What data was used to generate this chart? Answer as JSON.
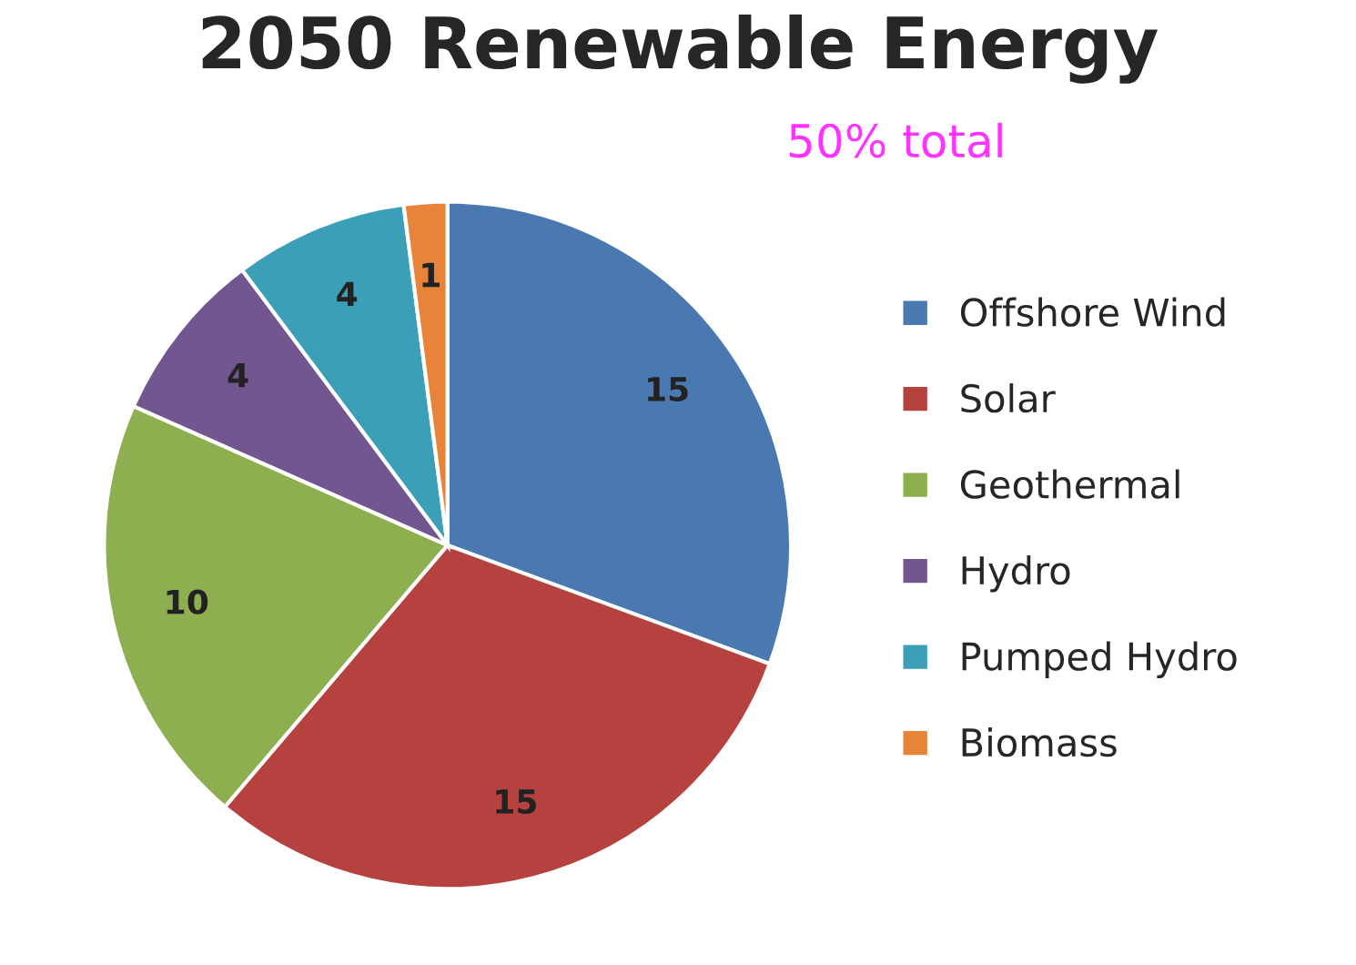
{
  "chart_data": {
    "type": "pie",
    "title": "2050 Renewable Energy",
    "categories": [
      "Offshore Wind",
      "Solar",
      "Geothermal",
      "Hydro",
      "Pumped Hydro",
      "Biomass"
    ],
    "values": [
      15,
      15,
      10,
      4,
      4,
      1
    ],
    "colors": [
      "#4a78b0",
      "#b5423f",
      "#8daf4f",
      "#71568f",
      "#3c9fb8",
      "#e8843a"
    ],
    "data_labels": true,
    "annotations": [
      "50% total"
    ],
    "legend": "right"
  }
}
